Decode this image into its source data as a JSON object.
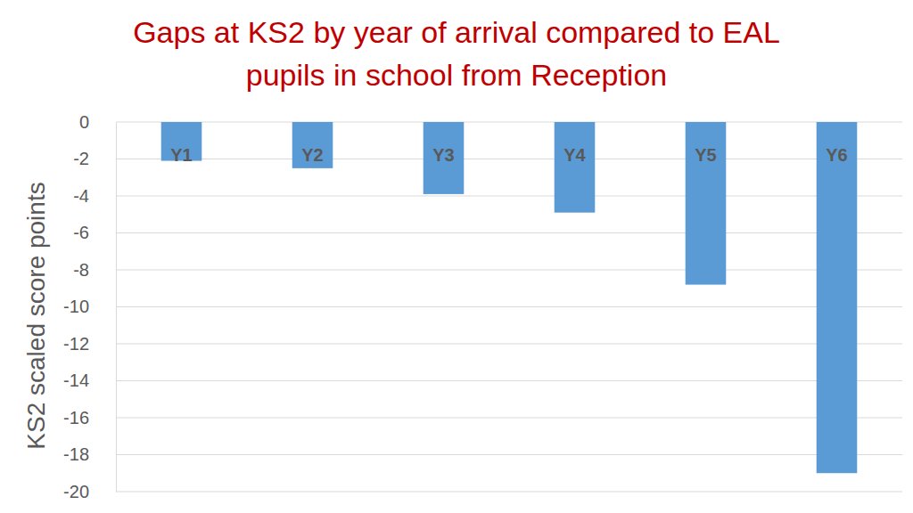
{
  "chart_data": {
    "type": "bar",
    "title": "Gaps at KS2 by year of arrival compared to EAL pupils in school from Reception",
    "y_label": "KS2 scaled score points",
    "categories": [
      "Y1",
      "Y2",
      "Y3",
      "Y4",
      "Y5",
      "Y6"
    ],
    "values": [
      -2.1,
      -2.5,
      -3.9,
      -4.9,
      -8.8,
      -19
    ],
    "color": "#5b9bd5",
    "ylim": [
      -20,
      0
    ],
    "yticks": [
      0,
      -2,
      -4,
      -6,
      -8,
      -10,
      -12,
      -14,
      -16,
      -18,
      -20
    ],
    "grid": true
  }
}
